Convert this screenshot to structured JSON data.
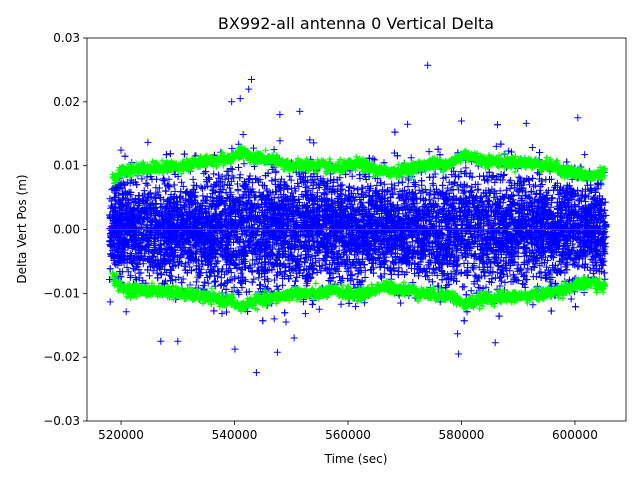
{
  "chart_data": {
    "type": "scatter",
    "title": "BX992-all antenna 0 Vertical Delta",
    "xlabel": "Time (sec)",
    "ylabel": "Delta Vert Pos (m)",
    "xlim": [
      514000,
      609000
    ],
    "ylim": [
      -0.03,
      0.03
    ],
    "x_ticks": [
      520000,
      540000,
      560000,
      580000,
      600000
    ],
    "x_tick_labels": [
      "520000",
      "540000",
      "560000",
      "580000",
      "600000"
    ],
    "y_ticks": [
      -0.03,
      -0.02,
      -0.01,
      0.0,
      0.01,
      0.02,
      0.03
    ],
    "y_tick_labels": [
      "−0.03",
      "−0.02",
      "−0.01",
      "0.00",
      "0.01",
      "0.02",
      "0.03"
    ],
    "data_range": [
      518000,
      605500
    ],
    "series": [
      {
        "name": "vertical delta",
        "marker": "+",
        "color": "#0000ff",
        "typical_spread": 0.0085,
        "notable_points": [
          {
            "x": 543000,
            "y": 0.0235
          },
          {
            "x": 542500,
            "y": 0.022
          },
          {
            "x": 541000,
            "y": 0.0205
          },
          {
            "x": 539500,
            "y": 0.02
          },
          {
            "x": 548000,
            "y": 0.018
          },
          {
            "x": 551500,
            "y": 0.0185
          },
          {
            "x": 570500,
            "y": 0.0165
          },
          {
            "x": 580000,
            "y": 0.017
          },
          {
            "x": 600500,
            "y": 0.0175
          },
          {
            "x": 579500,
            "y": -0.0195
          },
          {
            "x": 527000,
            "y": -0.0175
          },
          {
            "x": 530000,
            "y": -0.0175
          },
          {
            "x": 547000,
            "y": -0.014
          },
          {
            "x": 550500,
            "y": -0.017
          }
        ]
      },
      {
        "name": "upper sigma",
        "marker": "+",
        "color": "#00ff00",
        "x": [
          518500,
          520000,
          524000,
          528000,
          532000,
          536000,
          539500,
          541000,
          543000,
          546000,
          550000,
          554000,
          558000,
          562000,
          566000,
          570000,
          574000,
          578000,
          580500,
          584000,
          588000,
          592000,
          596000,
          600000,
          603000,
          605000
        ],
        "y": [
          0.0075,
          0.0092,
          0.0096,
          0.0097,
          0.0102,
          0.0108,
          0.0112,
          0.0122,
          0.0113,
          0.011,
          0.01,
          0.0101,
          0.0096,
          0.0103,
          0.009,
          0.0093,
          0.0102,
          0.0103,
          0.0118,
          0.0108,
          0.0106,
          0.0104,
          0.0099,
          0.0088,
          0.0083,
          0.009
        ]
      },
      {
        "name": "lower sigma",
        "marker": "+",
        "color": "#00ff00",
        "x": [
          518500,
          520000,
          524000,
          528000,
          532000,
          536000,
          539500,
          541000,
          543000,
          546000,
          550000,
          554000,
          558000,
          562000,
          566000,
          570000,
          574000,
          578000,
          580500,
          584000,
          588000,
          592000,
          596000,
          600000,
          603000,
          605000
        ],
        "y": [
          -0.0075,
          -0.0092,
          -0.0096,
          -0.0097,
          -0.0102,
          -0.0108,
          -0.0112,
          -0.0122,
          -0.0113,
          -0.011,
          -0.01,
          -0.0101,
          -0.0096,
          -0.0103,
          -0.009,
          -0.0093,
          -0.0102,
          -0.0103,
          -0.0118,
          -0.0108,
          -0.0106,
          -0.0104,
          -0.0099,
          -0.0088,
          -0.0083,
          -0.009
        ]
      },
      {
        "name": "zero line",
        "marker": "line",
        "color": "#ff0000",
        "x": [
          518000,
          605500
        ],
        "y": [
          0.0,
          0.0
        ]
      }
    ],
    "grid": false,
    "legend": "none"
  }
}
